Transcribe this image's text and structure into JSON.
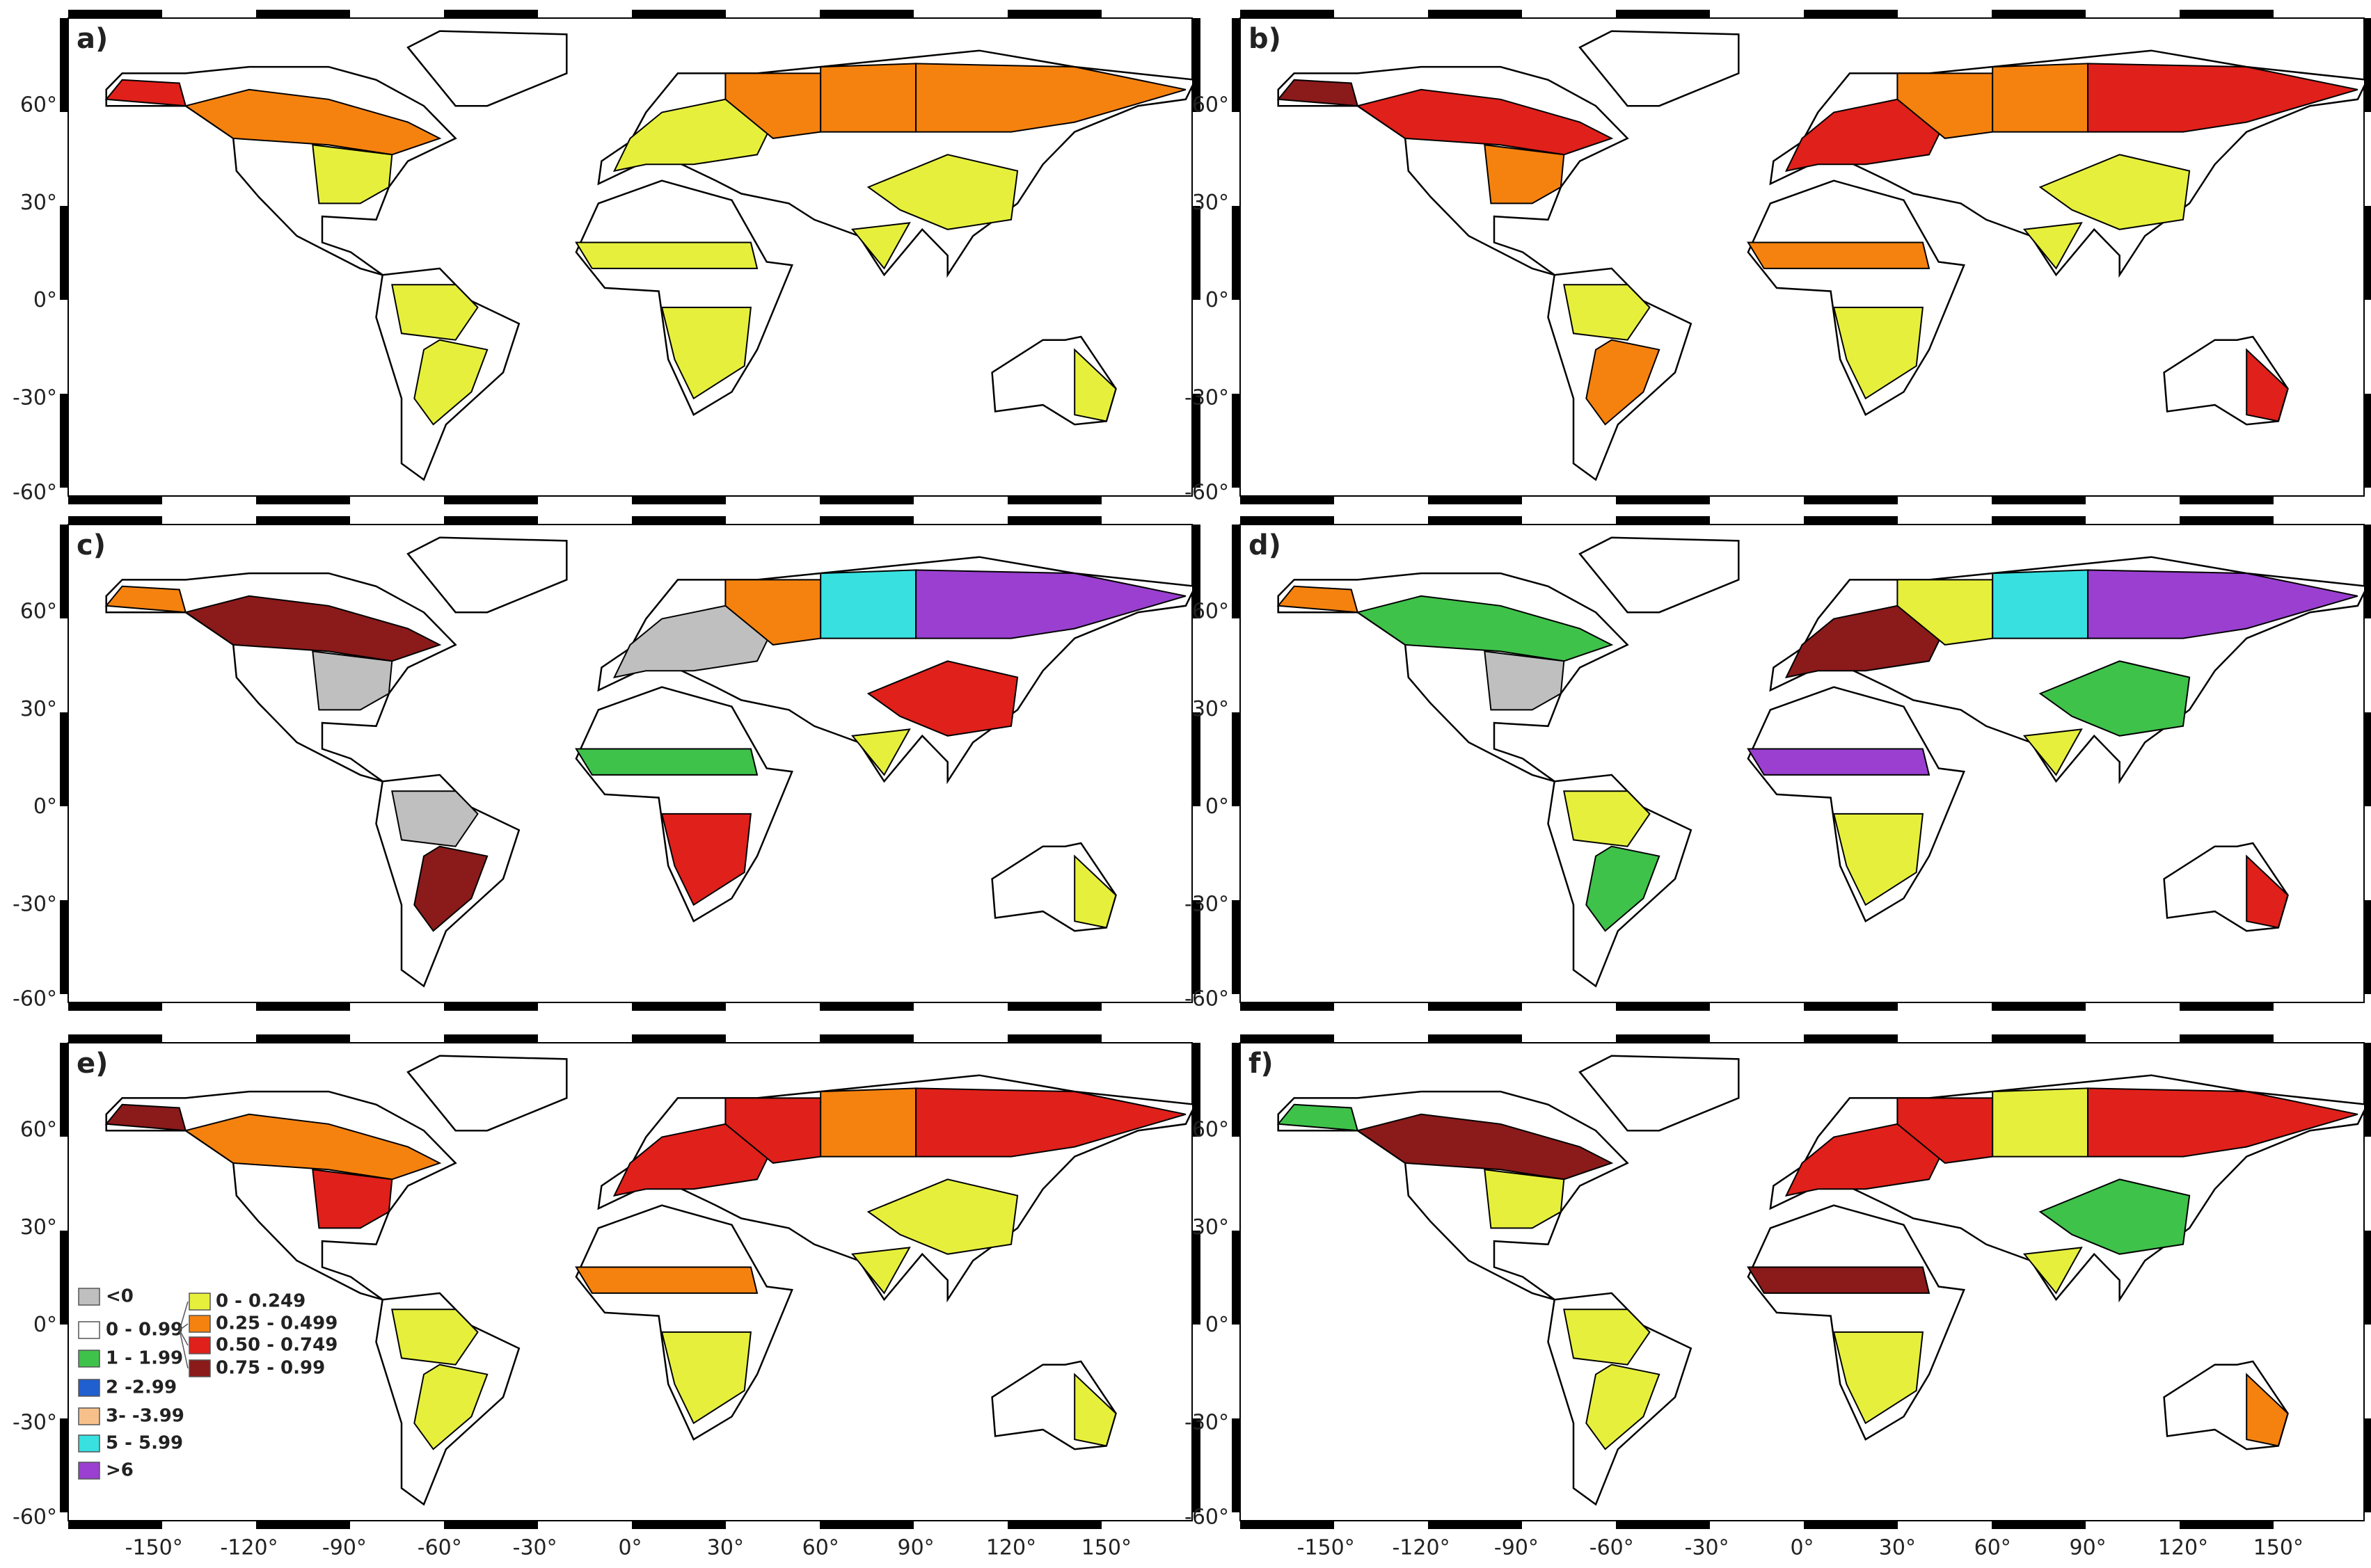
{
  "panels": [
    {
      "label": "a)"
    },
    {
      "label": "b)"
    },
    {
      "label": "c)"
    },
    {
      "label": "d)"
    },
    {
      "label": "e)"
    },
    {
      "label": "f)"
    }
  ],
  "lat_ticks": [
    "60°",
    "30°",
    "0°",
    "-30°",
    "-60°"
  ],
  "lon_ticks": [
    "-150°",
    "-120°",
    "-90°",
    "-60°",
    "-30°",
    "0°",
    "30°",
    "60°",
    "90°",
    "120°",
    "150°"
  ],
  "legend": {
    "left": [
      {
        "label": "<0",
        "color": "#bfbfbf"
      },
      {
        "label": "0 - 0.99",
        "color": "#ffffff"
      },
      {
        "label": "1 - 1.99",
        "color": "#3ec24a"
      },
      {
        "label": "2 -2.99",
        "color": "#1f5fd0"
      },
      {
        "label": "3- -3.99",
        "color": "#f7c08a"
      },
      {
        "label": "5 - 5.99",
        "color": "#38e0e0"
      },
      {
        "label": ">6",
        "color": "#9a3fd0"
      }
    ],
    "right": [
      {
        "label": "0 - 0.249",
        "color": "#e6f03c"
      },
      {
        "label": "0.25 - 0.499",
        "color": "#f5820f"
      },
      {
        "label": "0.50 - 0.749",
        "color": "#e0201a"
      },
      {
        "label": "0.75 - 0.99",
        "color": "#8b1a1a"
      }
    ]
  }
}
